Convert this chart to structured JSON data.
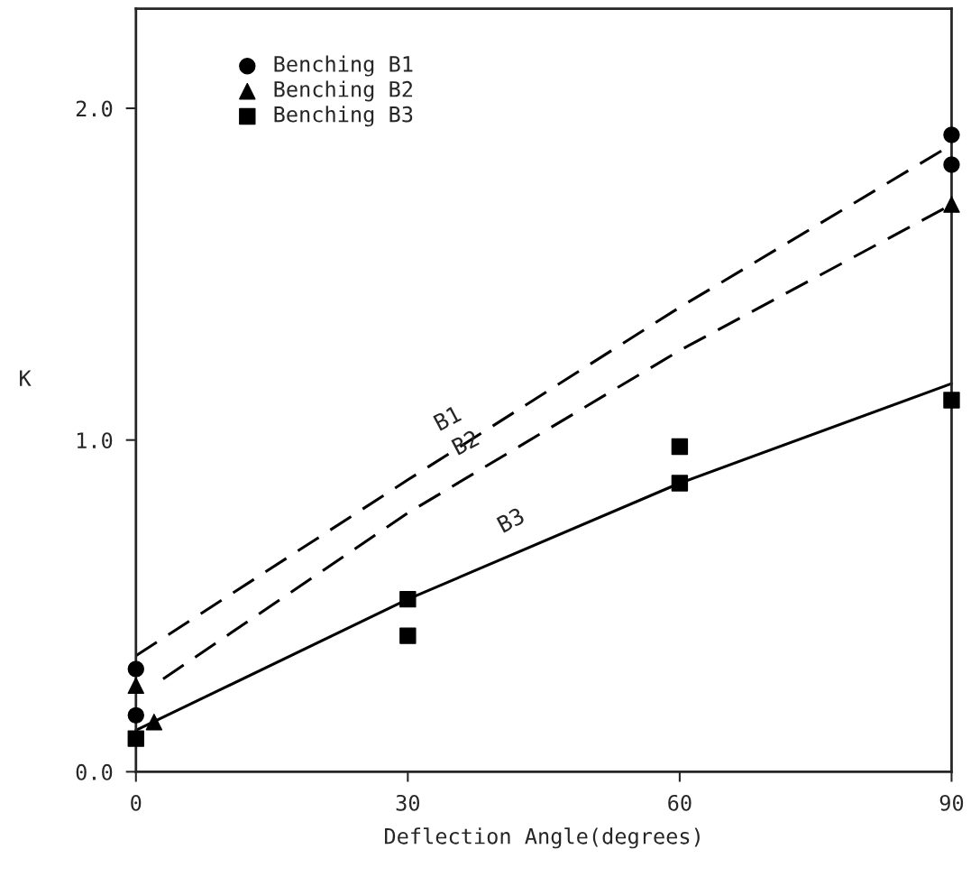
{
  "chart_data": {
    "type": "scatter",
    "xlabel": "Deflection Angle(degrees)",
    "ylabel": "K",
    "xlim": [
      0,
      90
    ],
    "ylim": [
      0,
      2.3
    ],
    "xticks": [
      0,
      30,
      60,
      90
    ],
    "yticks": [
      {
        "value": 0,
        "label": "0.0"
      },
      {
        "value": 1,
        "label": "1.0"
      },
      {
        "value": 2,
        "label": "2.0"
      }
    ],
    "grid": false,
    "legend": "top left",
    "series": [
      {
        "name": "Benching B1",
        "marker": "circle",
        "color": "#000000",
        "x": [
          0,
          0,
          90,
          90
        ],
        "values": [
          0.31,
          0.17,
          1.92,
          1.83
        ]
      },
      {
        "name": "Benching B2",
        "marker": "triangle",
        "color": "#000000",
        "x": [
          0,
          2,
          90
        ],
        "values": [
          0.26,
          0.15,
          1.71
        ]
      },
      {
        "name": "Benching B3",
        "marker": "square",
        "color": "#000000",
        "x": [
          0,
          30,
          30,
          60,
          60,
          90
        ],
        "values": [
          0.1,
          0.52,
          0.41,
          0.98,
          0.87,
          1.12
        ]
      },
      {
        "type": "line",
        "line_style": "dashed",
        "color": "#000000",
        "x": [
          0,
          30,
          60,
          90
        ],
        "values": [
          0.35,
          0.88,
          1.4,
          1.89
        ]
      },
      {
        "type": "line",
        "line_style": "dashed",
        "color": "#000000",
        "x": [
          3,
          30,
          60,
          90
        ],
        "values": [
          0.28,
          0.78,
          1.27,
          1.71
        ]
      },
      {
        "type": "line",
        "line_style": "solid",
        "color": "#000000",
        "x": [
          0,
          30,
          60,
          90
        ],
        "values": [
          0.125,
          0.52,
          0.87,
          1.17
        ]
      }
    ],
    "annotations": [
      {
        "text": "B1",
        "x": 35,
        "y": 0.967
      },
      {
        "text": "B2",
        "x": 37,
        "y": 0.894
      },
      {
        "text": "B3",
        "x": 42,
        "y": 0.66
      }
    ]
  }
}
